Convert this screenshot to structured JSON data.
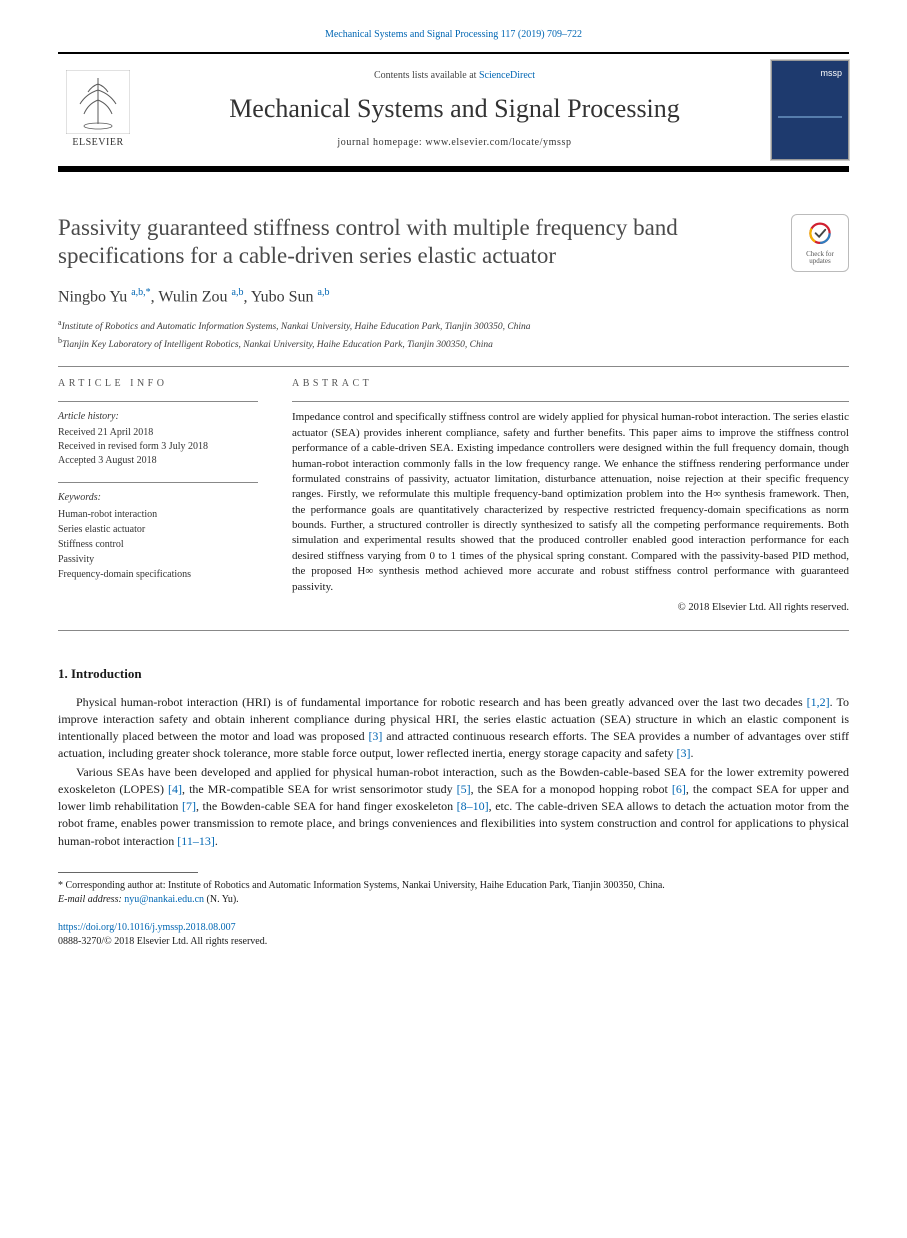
{
  "citation_header": "Mechanical Systems and Signal Processing 117 (2019) 709–722",
  "masthead": {
    "publisher_label": "ELSEVIER",
    "contents_prefix": "Contents lists available at ",
    "contents_link": "ScienceDirect",
    "journal_name": "Mechanical Systems and Signal Processing",
    "homepage_label": "journal homepage: www.elsevier.com/locate/ymssp",
    "cover_tag": "mssp"
  },
  "article": {
    "title": "Passivity guaranteed stiffness control with multiple frequency band specifications for a cable-driven series elastic actuator",
    "crossmark_text": "Check for updates"
  },
  "authors_html": "Ningbo Yu",
  "authors": [
    {
      "name": "Ningbo Yu",
      "marks": "a,b,*"
    },
    {
      "name": "Wulin Zou",
      "marks": "a,b"
    },
    {
      "name": "Yubo Sun",
      "marks": "a,b"
    }
  ],
  "affiliations": [
    {
      "mark": "a",
      "text": "Institute of Robotics and Automatic Information Systems, Nankai University, Haihe Education Park, Tianjin 300350, China"
    },
    {
      "mark": "b",
      "text": "Tianjin Key Laboratory of Intelligent Robotics, Nankai University, Haihe Education Park, Tianjin 300350, China"
    }
  ],
  "article_info": {
    "heading": "ARTICLE INFO",
    "history_title": "Article history:",
    "history": [
      "Received 21 April 2018",
      "Received in revised form 3 July 2018",
      "Accepted 3 August 2018"
    ],
    "keywords_title": "Keywords:",
    "keywords": [
      "Human-robot interaction",
      "Series elastic actuator",
      "Stiffness control",
      "Passivity",
      "Frequency-domain specifications"
    ]
  },
  "abstract": {
    "heading": "ABSTRACT",
    "text": "Impedance control and specifically stiffness control are widely applied for physical human-robot interaction. The series elastic actuator (SEA) provides inherent compliance, safety and further benefits. This paper aims to improve the stiffness control performance of a cable-driven SEA. Existing impedance controllers were designed within the full frequency domain, though human-robot interaction commonly falls in the low frequency range. We enhance the stiffness rendering performance under formulated constrains of passivity, actuator limitation, disturbance attenuation, noise rejection at their specific frequency ranges. Firstly, we reformulate this multiple frequency-band optimization problem into the H∞ synthesis framework. Then, the performance goals are quantitatively characterized by respective restricted frequency-domain specifications as norm bounds. Further, a structured controller is directly synthesized to satisfy all the competing performance requirements. Both simulation and experimental results showed that the produced controller enabled good interaction performance for each desired stiffness varying from 0 to 1 times of the physical spring constant. Compared with the passivity-based PID method, the proposed H∞ synthesis method achieved more accurate and robust stiffness control performance with guaranteed passivity.",
    "copyright": "© 2018 Elsevier Ltd. All rights reserved."
  },
  "introduction": {
    "heading": "1. Introduction",
    "paragraphs": [
      "Physical human-robot interaction (HRI) is of fundamental importance for robotic research and has been greatly advanced over the last two decades [1,2]. To improve interaction safety and obtain inherent compliance during physical HRI, the series elastic actuation (SEA) structure in which an elastic component is intentionally placed between the motor and load was proposed [3] and attracted continuous research efforts. The SEA provides a number of advantages over stiff actuation, including greater shock tolerance, more stable force output, lower reflected inertia, energy storage capacity and safety [3].",
      "Various SEAs have been developed and applied for physical human-robot interaction, such as the Bowden-cable-based SEA for the lower extremity powered exoskeleton (LOPES) [4], the MR-compatible SEA for wrist sensorimotor study [5], the SEA for a monopod hopping robot [6], the compact SEA for upper and lower limb rehabilitation [7], the Bowden-cable SEA for hand finger exoskeleton [8–10], etc. The cable-driven SEA allows to detach the actuation motor from the robot frame, enables power transmission to remote place, and brings conveniences and flexibilities into system construction and control for applications to physical human-robot interaction [11–13]."
    ]
  },
  "footnotes": {
    "corr": "* Corresponding author at: Institute of Robotics and Automatic Information Systems, Nankai University, Haihe Education Park, Tianjin 300350, China.",
    "email_label": "E-mail address: ",
    "email": "nyu@nankai.edu.cn",
    "email_author": " (N. Yu)."
  },
  "doi": {
    "link": "https://doi.org/10.1016/j.ymssp.2018.08.007",
    "issn_line": "0888-3270/© 2018 Elsevier Ltd. All rights reserved."
  },
  "colors": {
    "link": "#0066b3",
    "rule": "#000000",
    "cover_bg": "#1e3a6e",
    "text": "#1a1a1a",
    "title_gray": "#4a4a4a"
  }
}
